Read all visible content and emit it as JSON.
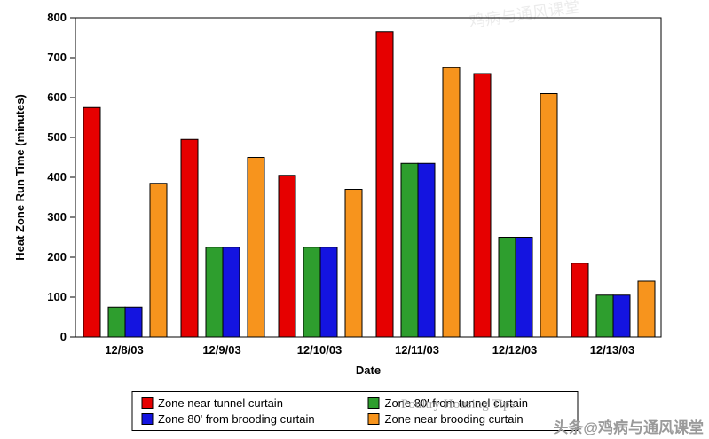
{
  "chart_data": {
    "type": "bar",
    "title": "",
    "xlabel": "Date",
    "ylabel": "Heat Zone Run Time (minutes)",
    "ylim": [
      0,
      800
    ],
    "ytick_step": 100,
    "grid": false,
    "legend_position": "bottom",
    "categories": [
      "12/8/03",
      "12/9/03",
      "12/10/03",
      "12/11/03",
      "12/12/03",
      "12/13/03"
    ],
    "series": [
      {
        "name": "Zone near tunnel curtain",
        "color": "#e60000",
        "values": [
          575,
          495,
          405,
          765,
          660,
          185
        ]
      },
      {
        "name": "Zone 80' from tunnel curtain",
        "color": "#2e9e2e",
        "values": [
          75,
          225,
          225,
          435,
          250,
          105
        ]
      },
      {
        "name": "Zone 80' from brooding curtain",
        "color": "#1414e0",
        "values": [
          75,
          225,
          225,
          435,
          250,
          105
        ]
      },
      {
        "name": "Zone near brooding curtain",
        "color": "#f7941d",
        "values": [
          385,
          450,
          370,
          675,
          610,
          140
        ]
      }
    ]
  },
  "watermarks": {
    "legend_overlay": "Poultry Housing Tips",
    "top_faint": "鸡病与通风课堂",
    "bottom_right": "头条@鸡病与通风课堂"
  }
}
